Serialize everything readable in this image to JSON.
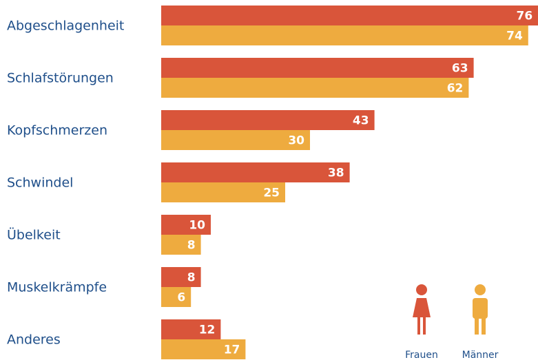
{
  "chart_data": {
    "type": "bar",
    "orientation": "horizontal",
    "categories": [
      "Abgeschlagenheit",
      "Schlafstörungen",
      "Kopfschmerzen",
      "Schwindel",
      "Übelkeit",
      "Muskelkrämpfe",
      "Anderes"
    ],
    "series": [
      {
        "name": "Frauen",
        "color": "#d9553a",
        "values": [
          76,
          63,
          43,
          38,
          10,
          8,
          12
        ]
      },
      {
        "name": "Männer",
        "color": "#eeab3f",
        "values": [
          74,
          62,
          30,
          25,
          8,
          6,
          17
        ]
      }
    ]
  }
}
